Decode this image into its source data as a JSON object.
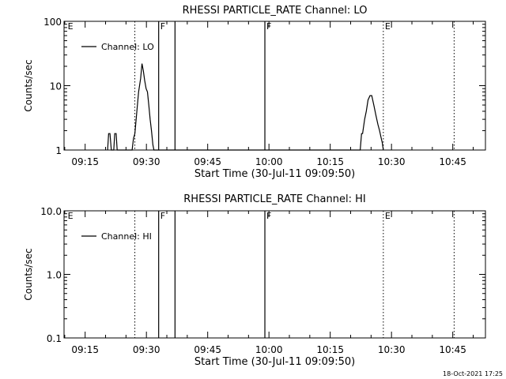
{
  "footer": {
    "timestamp": "18-Oct-2021 17:25"
  },
  "chart_data": [
    {
      "type": "line",
      "title": "RHESSI PARTICLE_RATE Channel: LO",
      "xlabel": "Start Time (30-Jul-11 09:09:50)",
      "ylabel": "Counts/sec",
      "y_scale": "log",
      "ylim": [
        1,
        100
      ],
      "xlim": [
        "09:09:50",
        "10:53:00"
      ],
      "x_ticks": [
        "09:15",
        "09:30",
        "09:45",
        "10:00",
        "10:15",
        "10:30",
        "10:45"
      ],
      "y_ticks": [
        "1",
        "10",
        "100"
      ],
      "legend": {
        "placement": "top-left",
        "entries": [
          "Channel: LO"
        ]
      },
      "event_markers": [
        {
          "time": "09:10:20",
          "label": "E",
          "style": "none"
        },
        {
          "time": "09:27:10",
          "label": "",
          "style": "dotted"
        },
        {
          "time": "09:33:00",
          "label": "F",
          "style": "solid"
        },
        {
          "time": "09:37:00",
          "label": "",
          "style": "solid"
        },
        {
          "time": "09:59:00",
          "label": "F",
          "style": "solid"
        },
        {
          "time": "10:28:00",
          "label": "E",
          "style": "dotted"
        },
        {
          "time": "10:45:20",
          "label": "",
          "style": "dotted"
        }
      ],
      "series": [
        {
          "name": "Channel: LO",
          "x": [
            "09:20:30",
            "09:20:45",
            "09:21:05",
            "09:21:25",
            "09:22:00",
            "09:22:15",
            "09:22:35",
            "09:22:50",
            "09:26:30",
            "09:26:50",
            "09:27:10",
            "09:27:40",
            "09:28:05",
            "09:28:35",
            "09:28:55",
            "09:29:15",
            "09:29:35",
            "09:29:55",
            "09:30:15",
            "09:30:35",
            "09:30:55",
            "09:31:15",
            "09:31:35",
            "09:31:50",
            "10:22:20",
            "10:22:40",
            "10:22:55",
            "10:23:25",
            "10:23:50",
            "10:24:15",
            "10:24:45",
            "10:25:10",
            "10:25:40",
            "10:26:10",
            "10:26:40",
            "10:27:05",
            "10:27:25",
            "10:27:45",
            "10:28:00"
          ],
          "values": [
            1,
            1.8,
            1.8,
            1,
            1,
            1.8,
            1.8,
            1,
            1,
            1.5,
            1.8,
            4,
            8,
            13,
            22,
            17,
            12,
            9,
            8,
            5,
            3,
            2,
            1.2,
            1,
            1,
            1.8,
            1.8,
            3,
            4,
            6,
            7,
            7,
            5,
            3.5,
            2.5,
            2,
            1.6,
            1.3,
            1
          ]
        }
      ]
    },
    {
      "type": "line",
      "title": "RHESSI PARTICLE_RATE Channel: HI",
      "xlabel": "Start Time (30-Jul-11 09:09:50)",
      "ylabel": "Counts/sec",
      "y_scale": "log",
      "ylim": [
        0.1,
        10
      ],
      "xlim": [
        "09:09:50",
        "10:53:00"
      ],
      "x_ticks": [
        "09:15",
        "09:30",
        "09:45",
        "10:00",
        "10:15",
        "10:30",
        "10:45"
      ],
      "y_ticks": [
        "0.1",
        "1.0",
        "10.0"
      ],
      "legend": {
        "placement": "top-left",
        "entries": [
          "Channel: HI"
        ]
      },
      "event_markers": [
        {
          "time": "09:10:20",
          "label": "E",
          "style": "none"
        },
        {
          "time": "09:27:10",
          "label": "",
          "style": "dotted"
        },
        {
          "time": "09:33:00",
          "label": "F",
          "style": "solid"
        },
        {
          "time": "09:37:00",
          "label": "",
          "style": "solid"
        },
        {
          "time": "09:59:00",
          "label": "F",
          "style": "solid"
        },
        {
          "time": "10:28:00",
          "label": "E",
          "style": "dotted"
        },
        {
          "time": "10:45:20",
          "label": "",
          "style": "dotted"
        }
      ],
      "series": [
        {
          "name": "Channel: HI",
          "x": [],
          "values": []
        }
      ]
    }
  ]
}
